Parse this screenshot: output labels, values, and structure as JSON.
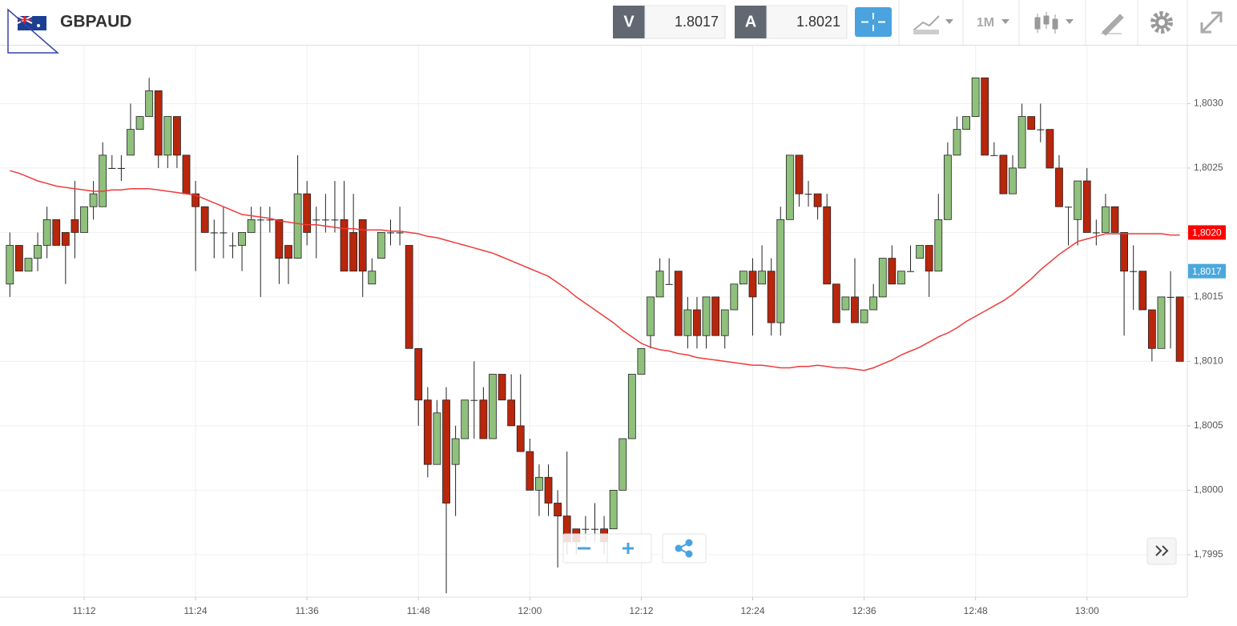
{
  "header": {
    "symbol": "GBPAUD",
    "sell_label": "V",
    "sell_price": "1.8017",
    "buy_label": "A",
    "buy_price": "1.8021",
    "timeframe": "1M"
  },
  "chart_data": {
    "type": "candlestick",
    "ylim": [
      1.79917,
      1.80345
    ],
    "yticks": [
      {
        "value": 1.7995,
        "label": "1,7995"
      },
      {
        "value": 1.8,
        "label": "1,8000"
      },
      {
        "value": 1.8005,
        "label": "1,8005"
      },
      {
        "value": 1.801,
        "label": "1,8010"
      },
      {
        "value": 1.8015,
        "label": "1,8015"
      },
      {
        "value": 1.802,
        "label": "1,8020"
      },
      {
        "value": 1.8025,
        "label": "1,8025"
      },
      {
        "value": 1.803,
        "label": "1,8030"
      }
    ],
    "xticks": [
      {
        "value": 8,
        "label": "11:12"
      },
      {
        "value": 20,
        "label": "11:24"
      },
      {
        "value": 32,
        "label": "11:36"
      },
      {
        "value": 44,
        "label": "11:48"
      },
      {
        "value": 56,
        "label": "12:00"
      },
      {
        "value": 68,
        "label": "12:12"
      },
      {
        "value": 80,
        "label": "12:24"
      },
      {
        "value": 92,
        "label": "12:36"
      },
      {
        "value": 104,
        "label": "12:48"
      },
      {
        "value": 116,
        "label": "13:00"
      }
    ],
    "grid": true,
    "up_color": "#8fc07c",
    "down_color": "#b8260c",
    "open": [
      1.8016,
      1.8019,
      1.8017,
      1.8018,
      1.8019,
      1.8021,
      1.802,
      1.8021,
      1.802,
      1.8022,
      1.8022,
      1.8025,
      1.8025,
      1.8026,
      1.8028,
      1.8029,
      1.8031,
      1.8026,
      1.8029,
      1.8026,
      1.8023,
      1.8022,
      1.802,
      1.802,
      1.8019,
      1.8019,
      1.802,
      1.8021,
      1.8021,
      1.8021,
      1.8019,
      1.8018,
      1.8023,
      1.8021,
      1.8021,
      1.8021,
      1.8021,
      1.802,
      1.8021,
      1.8016,
      1.8018,
      1.802,
      1.802,
      1.8019,
      1.8011,
      1.8007,
      1.8002,
      1.8007,
      1.8002,
      1.8004,
      1.8007,
      1.8007,
      1.8004,
      1.8009,
      1.8007,
      1.8005,
      1.8003,
      1.8,
      1.8001,
      1.7999,
      1.7998,
      1.7997,
      1.7997,
      1.7997,
      1.7997,
      1.7997,
      1.8,
      1.8004,
      1.8009,
      1.8012,
      1.8015,
      1.8016,
      1.8017,
      1.8012,
      1.8014,
      1.8012,
      1.8015,
      1.8012,
      1.8014,
      1.8016,
      1.8017,
      1.8016,
      1.8017,
      1.8013,
      1.8021,
      1.8026,
      1.8023,
      1.8023,
      1.8022,
      1.8016,
      1.8014,
      1.8015,
      1.8013,
      1.8014,
      1.8015,
      1.8018,
      1.8016,
      1.8017,
      1.8018,
      1.8019,
      1.8017,
      1.8021,
      1.8026,
      1.8028,
      1.8029,
      1.8032,
      1.8026,
      1.8026,
      1.8023,
      1.8025,
      1.8029,
      1.8028,
      1.8028,
      1.8025,
      1.8022,
      1.8021,
      1.8024,
      1.802,
      1.802,
      1.8022,
      1.802,
      1.8017,
      1.8017,
      1.8014,
      1.8011,
      1.8015,
      1.8015
    ],
    "high": [
      1.802,
      1.8019,
      1.8018,
      1.802,
      1.8022,
      1.8021,
      1.802,
      1.8024,
      1.8022,
      1.8024,
      1.8027,
      1.8026,
      1.8026,
      1.803,
      1.8029,
      1.8032,
      1.8031,
      1.8029,
      1.8029,
      1.8026,
      1.8024,
      1.8022,
      1.8021,
      1.8022,
      1.802,
      1.802,
      1.8022,
      1.8022,
      1.8022,
      1.8021,
      1.8019,
      1.8026,
      1.8024,
      1.8022,
      1.8023,
      1.8024,
      1.8024,
      1.8023,
      1.8021,
      1.8018,
      1.802,
      1.8021,
      1.8022,
      1.8019,
      1.8011,
      1.8008,
      1.8007,
      1.8008,
      1.8005,
      1.8007,
      1.801,
      1.8008,
      1.8009,
      1.8009,
      1.8009,
      1.8009,
      1.8004,
      1.8002,
      1.8002,
      1.8,
      1.8003,
      1.7997,
      1.7998,
      1.7999,
      1.7998,
      1.8,
      1.8004,
      1.8009,
      1.8011,
      1.8015,
      1.8018,
      1.8018,
      1.8017,
      1.8015,
      1.8015,
      1.8015,
      1.8015,
      1.8014,
      1.8016,
      1.8017,
      1.8018,
      1.8019,
      1.8018,
      1.8022,
      1.8026,
      1.8026,
      1.8024,
      1.8023,
      1.8023,
      1.8016,
      1.8015,
      1.8018,
      1.8014,
      1.8016,
      1.8018,
      1.8019,
      1.8017,
      1.8019,
      1.8019,
      1.8019,
      1.8023,
      1.8027,
      1.8029,
      1.8029,
      1.8032,
      1.8032,
      1.8027,
      1.8026,
      1.8026,
      1.803,
      1.8029,
      1.803,
      1.8028,
      1.8026,
      1.8022,
      1.8024,
      1.8025,
      1.8021,
      1.8023,
      1.8022,
      1.802,
      1.8019,
      1.8017,
      1.8014,
      1.8015,
      1.8017,
      1.8015
    ],
    "low": [
      1.8015,
      1.8017,
      1.8017,
      1.8017,
      1.8018,
      1.8019,
      1.8016,
      1.8018,
      1.802,
      1.8021,
      1.8022,
      1.8025,
      1.8024,
      1.8026,
      1.8028,
      1.8029,
      1.8025,
      1.8025,
      1.8025,
      1.8023,
      1.8017,
      1.802,
      1.8018,
      1.8018,
      1.8018,
      1.8017,
      1.802,
      1.8015,
      1.802,
      1.8016,
      1.8016,
      1.8018,
      1.8019,
      1.8018,
      1.802,
      1.802,
      1.8017,
      1.8017,
      1.8015,
      1.8016,
      1.8018,
      1.8019,
      1.8019,
      1.8011,
      1.8005,
      1.8001,
      1.8002,
      1.7992,
      1.7998,
      1.8004,
      1.8004,
      1.8004,
      1.8004,
      1.8007,
      1.8005,
      1.8003,
      1.8,
      1.7998,
      1.7998,
      1.7994,
      1.7995,
      1.7995,
      1.7996,
      1.7996,
      1.7995,
      1.7997,
      1.8,
      1.8004,
      1.8009,
      1.8011,
      1.8015,
      1.8016,
      1.8012,
      1.8011,
      1.8011,
      1.8011,
      1.8012,
      1.8011,
      1.8014,
      1.8016,
      1.8012,
      1.8016,
      1.8012,
      1.8012,
      1.8021,
      1.8022,
      1.8022,
      1.8021,
      1.8016,
      1.8013,
      1.8014,
      1.8013,
      1.8013,
      1.8014,
      1.8015,
      1.8016,
      1.8016,
      1.8017,
      1.8018,
      1.8015,
      1.8017,
      1.8021,
      1.8026,
      1.8028,
      1.8029,
      1.8026,
      1.8026,
      1.8023,
      1.8023,
      1.8025,
      1.8028,
      1.8027,
      1.8025,
      1.8022,
      1.8019,
      1.8019,
      1.802,
      1.8019,
      1.802,
      1.802,
      1.8012,
      1.8014,
      1.8014,
      1.801,
      1.8011,
      1.8011,
      1.801
    ],
    "close": [
      1.8019,
      1.8017,
      1.8018,
      1.8019,
      1.8021,
      1.8019,
      1.8019,
      1.802,
      1.8022,
      1.8023,
      1.8026,
      1.8025,
      1.8025,
      1.8028,
      1.8029,
      1.8031,
      1.8026,
      1.8029,
      1.8026,
      1.8023,
      1.8022,
      1.802,
      1.802,
      1.802,
      1.8019,
      1.802,
      1.8021,
      1.8021,
      1.8021,
      1.8018,
      1.8018,
      1.8023,
      1.802,
      1.8021,
      1.8021,
      1.8021,
      1.8017,
      1.8017,
      1.8017,
      1.8017,
      1.802,
      1.802,
      1.802,
      1.8011,
      1.8007,
      1.8002,
      1.8006,
      1.7999,
      1.8004,
      1.8007,
      1.8007,
      1.8004,
      1.8009,
      1.8007,
      1.8005,
      1.8003,
      1.8,
      1.8001,
      1.7999,
      1.7998,
      1.7996,
      1.7996,
      1.7997,
      1.7997,
      1.7996,
      1.8,
      1.8004,
      1.8009,
      1.8011,
      1.8015,
      1.8017,
      1.8016,
      1.8012,
      1.8014,
      1.8012,
      1.8015,
      1.8012,
      1.8014,
      1.8016,
      1.8017,
      1.8015,
      1.8017,
      1.8013,
      1.8021,
      1.8026,
      1.8023,
      1.8023,
      1.8022,
      1.8016,
      1.8013,
      1.8015,
      1.8013,
      1.8014,
      1.8015,
      1.8018,
      1.8016,
      1.8017,
      1.8017,
      1.8019,
      1.8017,
      1.8021,
      1.8026,
      1.8028,
      1.8029,
      1.8032,
      1.8026,
      1.8026,
      1.8023,
      1.8025,
      1.8029,
      1.8028,
      1.8028,
      1.8025,
      1.8022,
      1.8022,
      1.8024,
      1.802,
      1.802,
      1.8022,
      1.802,
      1.8017,
      1.8017,
      1.8014,
      1.8011,
      1.8015,
      1.8015,
      1.801
    ],
    "moving_average": {
      "color": "#ee3b3b",
      "values": [
        1.80248,
        1.80246,
        1.80243,
        1.8024,
        1.80238,
        1.80236,
        1.80235,
        1.80234,
        1.80233,
        1.80232,
        1.80232,
        1.80233,
        1.80233,
        1.80234,
        1.80234,
        1.80234,
        1.80233,
        1.80232,
        1.80231,
        1.8023,
        1.80229,
        1.80226,
        1.80223,
        1.8022,
        1.80217,
        1.80214,
        1.80213,
        1.80212,
        1.80211,
        1.80209,
        1.80208,
        1.80207,
        1.80206,
        1.80206,
        1.80205,
        1.80204,
        1.80203,
        1.80203,
        1.80202,
        1.80202,
        1.80202,
        1.80201,
        1.80201,
        1.802,
        1.80199,
        1.80197,
        1.80196,
        1.80194,
        1.80192,
        1.8019,
        1.80188,
        1.80186,
        1.80184,
        1.80181,
        1.80178,
        1.80175,
        1.80172,
        1.80169,
        1.80166,
        1.80161,
        1.80156,
        1.8015,
        1.80145,
        1.8014,
        1.80135,
        1.8013,
        1.80124,
        1.80119,
        1.80114,
        1.80111,
        1.80109,
        1.80108,
        1.80106,
        1.80105,
        1.80103,
        1.80102,
        1.80101,
        1.801,
        1.80099,
        1.80098,
        1.80097,
        1.80097,
        1.80096,
        1.80095,
        1.80095,
        1.80096,
        1.80096,
        1.80097,
        1.80096,
        1.80095,
        1.80095,
        1.80094,
        1.80093,
        1.80095,
        1.80098,
        1.80101,
        1.80105,
        1.80108,
        1.80111,
        1.80115,
        1.80119,
        1.80122,
        1.80126,
        1.80131,
        1.80135,
        1.80139,
        1.80143,
        1.80147,
        1.80152,
        1.80158,
        1.80164,
        1.80171,
        1.80177,
        1.80183,
        1.80188,
        1.80193,
        1.80195,
        1.80197,
        1.80199,
        1.80199,
        1.80199,
        1.80199,
        1.80199,
        1.80199,
        1.80199,
        1.80198,
        1.80198
      ]
    },
    "annotations": [
      {
        "value": 1.802,
        "label": "1,8020",
        "color": "#ff0000"
      },
      {
        "value": 1.8017,
        "label": "1,8017",
        "color": "#4aa8dc"
      }
    ]
  }
}
